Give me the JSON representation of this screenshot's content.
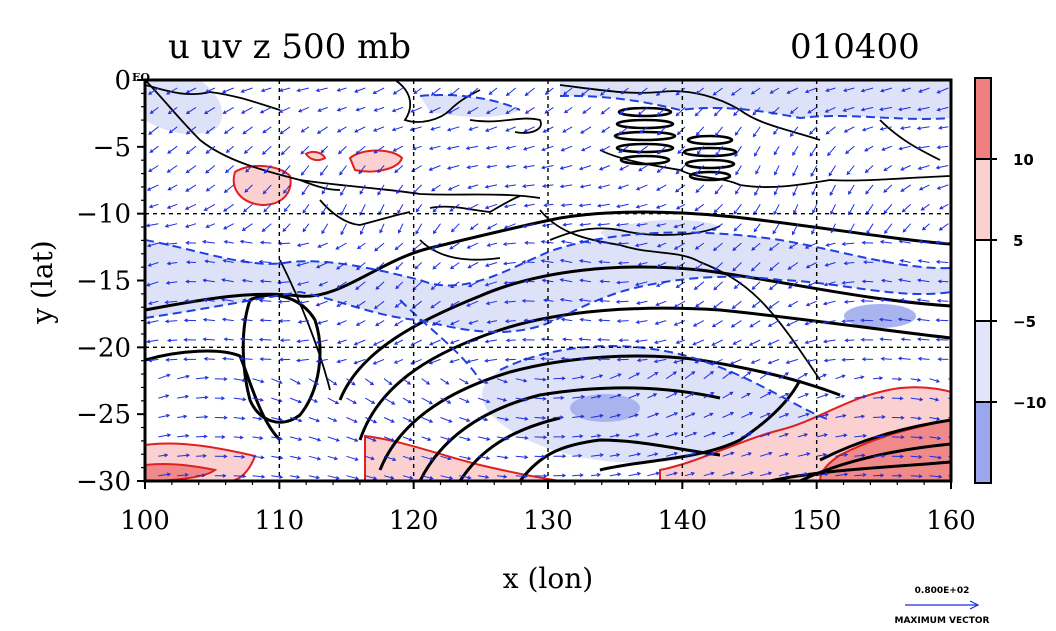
{
  "chart_data": {
    "type": "contour-vector map",
    "title": "u uv z 500 mb",
    "title_right": "010400",
    "xlabel": "x (lon)",
    "ylabel": "y (lat)",
    "xlim": [
      100,
      160
    ],
    "ylim": [
      -30,
      0
    ],
    "x_ticks": [
      "100",
      "110",
      "120",
      "130",
      "140",
      "150",
      "160"
    ],
    "y_ticks": [
      "0",
      "−5",
      "−10",
      "−15",
      "−20",
      "−25",
      "−30"
    ],
    "y_tick_values": [
      0,
      -5,
      -10,
      -15,
      -20,
      -25,
      -30
    ],
    "x_tick_values": [
      100,
      110,
      120,
      130,
      140,
      150,
      160
    ],
    "equator_label": "EQ",
    "grid": true,
    "colorbar": {
      "labels": [
        "10",
        "5",
        "−5",
        "−10"
      ],
      "colors": [
        "#f08080",
        "#fbd0d0",
        "#ffffff",
        "#e2e4fa",
        "#9aa6ee"
      ],
      "level_values": [
        10,
        5,
        -5,
        -10
      ]
    },
    "vector_reference": {
      "magnitude": "0.800E+02",
      "caption": "MAXIMUM VECTOR"
    },
    "colors": {
      "neg_fill_light": "#dde2f8",
      "neg_fill_dark": "#a9b4ef",
      "pos_fill_light": "#fbd0d0",
      "pos_fill_dark": "#f08a8a",
      "vector": "#1f2fe0",
      "contour_z": "#000000",
      "contour_neg_u": "#2040e0",
      "contour_pos_u": "#e02020"
    }
  }
}
